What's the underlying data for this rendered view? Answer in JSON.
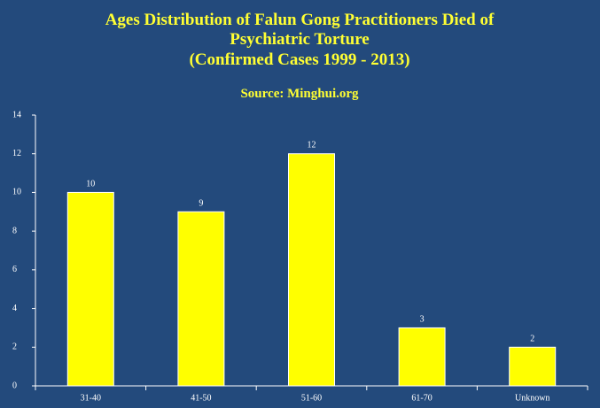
{
  "chart_data": {
    "type": "bar",
    "title": [
      "Ages Distribution of Falun Gong Practitioners Died of",
      "Psychiatric Torture",
      "(Confirmed Cases 1999 - 2013)"
    ],
    "subtitle": "Source: Minghui.org",
    "categories": [
      "31-40",
      "41-50",
      "51-60",
      "61-70",
      "Unknown"
    ],
    "values": [
      10,
      9,
      12,
      3,
      2
    ],
    "color": "#ffff00",
    "ylim": [
      0,
      14
    ],
    "yticks": [
      0,
      2,
      4,
      6,
      8,
      10,
      12,
      14
    ]
  }
}
